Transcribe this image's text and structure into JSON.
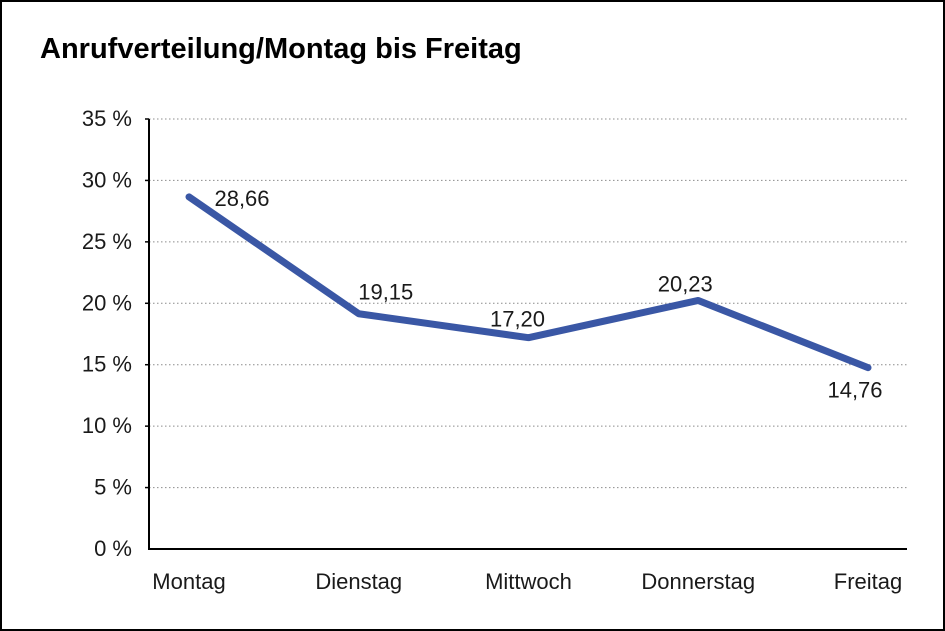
{
  "title": "Anrufverteilung/Montag bis Freitag",
  "chart_data": {
    "type": "line",
    "title": "Anrufverteilung/Montag bis Freitag",
    "categories": [
      "Montag",
      "Dienstag",
      "Mittwoch",
      "Donnerstag",
      "Freitag"
    ],
    "values": [
      28.66,
      19.15,
      17.2,
      20.23,
      14.76
    ],
    "point_labels": [
      "28,66",
      "19,15",
      "17,20",
      "20,23",
      "14,76"
    ],
    "xlabel": "",
    "ylabel": "",
    "ylim": [
      0,
      35
    ],
    "y_tick_step": 5,
    "y_tick_labels": [
      "0 %",
      "5 %",
      "10 %",
      "15 %",
      "20 %",
      "25 %",
      "30 %",
      "35 %"
    ],
    "grid": "horizontal-dotted",
    "legend_position": "none",
    "decimal_separator": ","
  },
  "colors": {
    "line": "#3a57a5",
    "grid": "#8c8c8c",
    "axis": "#000000",
    "text": "#1a1a1a",
    "background": "#ffffff",
    "border": "#000000"
  }
}
